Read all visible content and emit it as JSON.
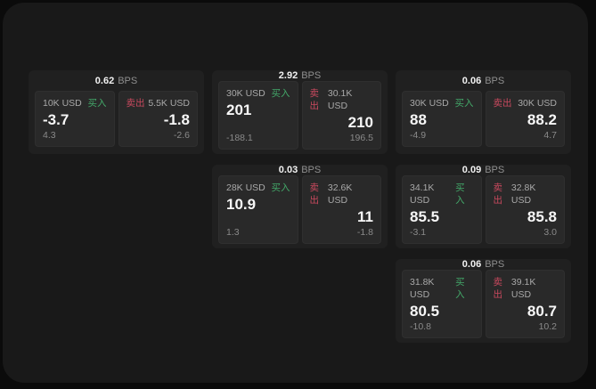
{
  "labels": {
    "bps": "BPS",
    "buy": "买入",
    "sell": "卖出"
  },
  "colors": {
    "buy": "#43a869",
    "sell": "#c9495e",
    "window_bg": "#191919",
    "page_bg": "#0b0b0b",
    "card_bg": "#202020",
    "panel_bg": "#292929"
  },
  "cards": [
    {
      "bps": "0.62",
      "col": 0,
      "row": 0,
      "buy": {
        "notional": "10K USD",
        "price": "-3.7",
        "delta": "4.3"
      },
      "sell": {
        "notional": "5.5K USD",
        "price": "-1.8",
        "delta": "-2.6"
      }
    },
    {
      "bps": "2.92",
      "col": 1,
      "row": 0,
      "buy": {
        "notional": "30K USD",
        "price": "201",
        "delta": "-188.1"
      },
      "sell": {
        "notional": "30.1K USD",
        "price": "210",
        "delta": "196.5"
      }
    },
    {
      "bps": "0.06",
      "col": 2,
      "row": 0,
      "buy": {
        "notional": "30K USD",
        "price": "88",
        "delta": "-4.9"
      },
      "sell": {
        "notional": "30K USD",
        "price": "88.2",
        "delta": "4.7"
      }
    },
    {
      "bps": "0.03",
      "col": 1,
      "row": 1,
      "buy": {
        "notional": "28K USD",
        "price": "10.9",
        "delta": "1.3"
      },
      "sell": {
        "notional": "32.6K USD",
        "price": "11",
        "delta": "-1.8"
      }
    },
    {
      "bps": "0.09",
      "col": 2,
      "row": 1,
      "buy": {
        "notional": "34.1K USD",
        "price": "85.5",
        "delta": "-3.1"
      },
      "sell": {
        "notional": "32.8K USD",
        "price": "85.8",
        "delta": "3.0"
      }
    },
    {
      "bps": "0.06",
      "col": 2,
      "row": 2,
      "buy": {
        "notional": "31.8K USD",
        "price": "80.5",
        "delta": "-10.8"
      },
      "sell": {
        "notional": "39.1K USD",
        "price": "80.7",
        "delta": "10.2"
      }
    }
  ]
}
